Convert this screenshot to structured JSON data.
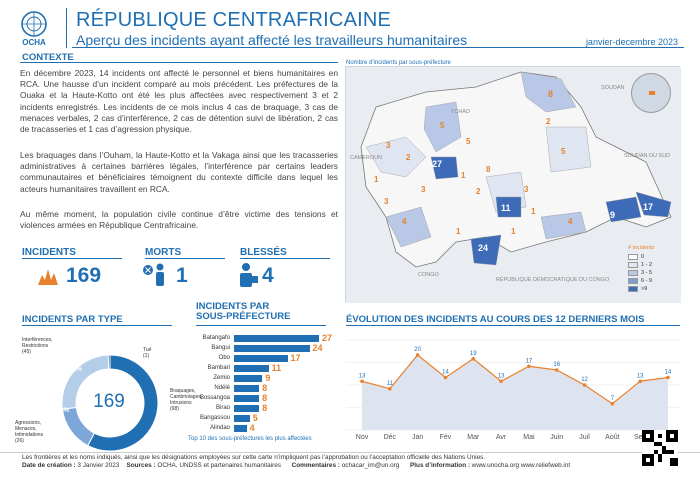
{
  "header": {
    "org": "OCHA",
    "title": "RÉPUBLIQUE CENTRAFRICAINE",
    "subtitle": "Aperçu des incidents ayant affecté les travailleurs humanitaires",
    "period": "janvier-decembre 2023"
  },
  "context": {
    "title": "CONTEXTE",
    "p1": "En décembre 2023, 14 incidents ont affecté le personnel et biens humanitaires en RCA. Une hausse d’un incident comparé au mois précédent. Les préfectures de la Ouaka et la Haute-Kotto ont été les plus affectées avec respectivement 3 et 2 incidents enregistrés. Les incidents de ce mois inclus 4 cas de braquage, 3 cas de menaces verbales, 2 cas d’interférence, 2 cas de détention suivi de libération, 2 cas de tracasseries et 1 cas d’agression physique.",
    "p2": "Les braquages dans l’Ouham, la Haute-Kotto et la Vakaga ainsi que les tracasseries administratives à certaines barrières légales, l’interférence par certains leaders communautaires et bénéficiaires témoignent du contexte difficile dans lequel les acteurs humanitaires travaillent en RCA.",
    "p3": "Au même moment, la population civile continue d’être victime des tensions et violences armées en République Centrafricaine."
  },
  "map": {
    "title": "Nombre d'incidents par sous-préfecture",
    "countries": [
      "TCHAD",
      "SOUDAN",
      "CAMEROUN",
      "SOUDAN DU SUD",
      "CONGO",
      "RÉPUBLIQUE DÉMOCRATIQUE DU CONGO"
    ],
    "legend_title": "# incidents",
    "legend": [
      "0",
      "1 - 2",
      "3 - 5",
      "6 - 9",
      ">9"
    ],
    "legend_colors": [
      "#ffffff",
      "#dfe6f2",
      "#b8c8e6",
      "#7f9fd3",
      "#3d6bb8"
    ],
    "numbers": [
      {
        "v": "8",
        "big": false
      },
      {
        "v": "27",
        "big": true
      },
      {
        "v": "11",
        "big": true
      },
      {
        "v": "9",
        "big": true
      },
      {
        "v": "17",
        "big": true
      },
      {
        "v": "24",
        "big": true
      },
      {
        "v": "3"
      },
      {
        "v": "2"
      },
      {
        "v": "1"
      },
      {
        "v": "5"
      },
      {
        "v": "3"
      },
      {
        "v": "1"
      },
      {
        "v": "4"
      },
      {
        "v": "2"
      },
      {
        "v": "3"
      },
      {
        "v": "1"
      },
      {
        "v": "5"
      },
      {
        "v": "8"
      },
      {
        "v": "4"
      },
      {
        "v": "1"
      },
      {
        "v": "3"
      },
      {
        "v": "2"
      },
      {
        "v": "5"
      },
      {
        "v": "1"
      }
    ]
  },
  "stats": {
    "incidents_label": "INCIDENTS",
    "incidents_value": "169",
    "morts_label": "MORTS",
    "morts_value": "1",
    "blesses_label": "BLESSÉS",
    "blesses_value": "4"
  },
  "by_type": {
    "title": "INCIDENTS PAR TYPE",
    "total": "169",
    "slices": [
      {
        "label": "Braquages, Cambriolages, Intrusions",
        "count": "(98)",
        "pct": "58%",
        "value": 98,
        "color": "#1f6fb2"
      },
      {
        "label": "Agressions, Menaces, Intimidations",
        "count": "(26)",
        "pct": "15%",
        "value": 26,
        "color": "#7da7d9"
      },
      {
        "label": "Interférences, Restrictions",
        "count": "(45)",
        "pct": "26%",
        "value": 45,
        "color": "#b4cde8"
      },
      {
        "label": "Tué",
        "count": "(1)",
        "pct": "",
        "value": 1,
        "color": "#0d3d66"
      }
    ]
  },
  "by_subpref": {
    "title_line1": "INCIDENTS PAR",
    "title_line2": "SOUS-PRÉFECTURE",
    "note": "Top 10 des sous-préfectures les plus affectées",
    "items": [
      {
        "name": "Batangafo",
        "value": 27
      },
      {
        "name": "Bangui",
        "value": 24
      },
      {
        "name": "Obo",
        "value": 17
      },
      {
        "name": "Bambari",
        "value": 11
      },
      {
        "name": "Zemio",
        "value": 9
      },
      {
        "name": "Ndélé",
        "value": 8
      },
      {
        "name": "Bossangoa",
        "value": 8
      },
      {
        "name": "Birao",
        "value": 8
      },
      {
        "name": "Bangassou",
        "value": 5
      },
      {
        "name": "Alindao",
        "value": 4
      }
    ]
  },
  "chart_data": {
    "type": "area",
    "title": "ÉVOLUTION DES INCIDENTS AU COURS DES 12 DERNIERS MOIS",
    "categories": [
      "Nov",
      "Déc",
      "Jan",
      "Fév",
      "Mar",
      "Avr",
      "Mai",
      "Juin",
      "Juil",
      "Août",
      "Sep",
      "Oct"
    ],
    "values": [
      13,
      11,
      20,
      14,
      19,
      13,
      17,
      16,
      12,
      7,
      13,
      14
    ],
    "ylim": [
      0,
      24
    ],
    "fill": "#dde3ef",
    "line": "#e8812c"
  },
  "footer": {
    "disclaimer": "Les frontières et les noms indiqués, ainsi que les désignations employées sur cette carte n’impliquent pas l’approbation ou l’acceptation officielle des Nations Unies.",
    "date_label": "Date de création :",
    "date": "3 Janvier 2023",
    "sources_label": "Sources :",
    "sources": "OCHA, UNDSS et partenaires humanitaires",
    "comments_label": "Commentaires :",
    "comments": "ochacar_im@un.org",
    "info_label": "Plus d’information :",
    "info": "www.unocha.org   www.reliefweb.int"
  }
}
